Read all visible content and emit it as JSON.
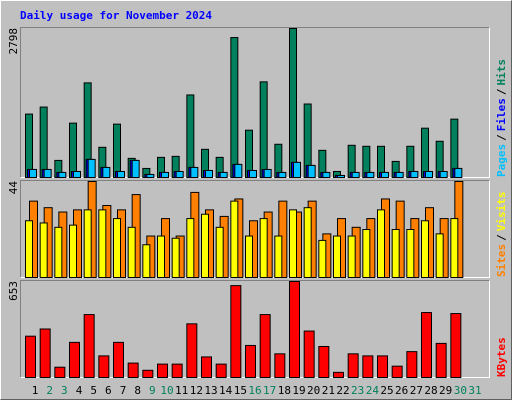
{
  "chart_data": [
    {
      "type": "bar",
      "title": "Daily usage for November 2024",
      "ylim": [
        0,
        2798
      ],
      "yticks": [
        2798
      ],
      "legend_separator": "/",
      "series": [
        {
          "name": "Hits",
          "color": "#00805c",
          "values": [
            1191,
            1323,
            321,
            1021,
            1777,
            567,
            1002,
            359,
            170,
            378,
            397,
            1550,
            529,
            378,
            2628,
            888,
            1796,
            624,
            2798,
            1380,
            510,
            113,
            605,
            586,
            586,
            302,
            586,
            926,
            680,
            1096,
            null
          ]
        },
        {
          "name": "Files",
          "color": "#0000ff",
          "values": [
            151,
            151,
            95,
            113,
            340,
            189,
            113,
            321,
            57,
            95,
            113,
            189,
            132,
            95,
            246,
            132,
            151,
            95,
            284,
            227,
            95,
            38,
            95,
            95,
            95,
            95,
            113,
            113,
            113,
            170,
            null
          ]
        },
        {
          "name": "Pages",
          "color": "#00c0ff",
          "values": [
            151,
            151,
            95,
            113,
            340,
            189,
            113,
            321,
            57,
            95,
            113,
            189,
            132,
            95,
            246,
            132,
            151,
            95,
            284,
            227,
            95,
            38,
            95,
            95,
            95,
            95,
            113,
            113,
            113,
            170,
            null
          ]
        }
      ]
    },
    {
      "type": "bar",
      "ylim": [
        0,
        44
      ],
      "yticks": [
        44
      ],
      "legend_separator": "/",
      "series": [
        {
          "name": "Visits",
          "color": "#ffff00",
          "values": [
            26,
            25,
            23,
            24,
            31,
            31,
            27,
            23,
            15,
            19,
            18,
            27,
            29,
            23,
            35,
            19,
            27,
            19,
            31,
            32,
            17,
            19,
            19,
            22,
            31,
            22,
            22,
            26,
            20,
            27,
            null
          ]
        },
        {
          "name": "Sites",
          "color": "#ff8000",
          "values": [
            35,
            32,
            30,
            31,
            44,
            33,
            31,
            38,
            19,
            27,
            19,
            39,
            31,
            28,
            36,
            26,
            30,
            35,
            30,
            35,
            20,
            27,
            23,
            27,
            36,
            35,
            27,
            32,
            27,
            44,
            null
          ]
        }
      ]
    },
    {
      "type": "bar",
      "ylim": [
        0,
        653
      ],
      "yticks": [
        653
      ],
      "categories": [
        "1",
        "2",
        "3",
        "4",
        "5",
        "6",
        "7",
        "8",
        "9",
        "10",
        "11",
        "12",
        "13",
        "14",
        "15",
        "16",
        "17",
        "18",
        "19",
        "20",
        "21",
        "22",
        "23",
        "24",
        "25",
        "26",
        "27",
        "28",
        "29",
        "30",
        "31"
      ],
      "category_colors": [
        "#000000",
        "#00805c",
        "#00805c",
        "#000000",
        "#000000",
        "#000000",
        "#000000",
        "#000000",
        "#00805c",
        "#00805c",
        "#000000",
        "#000000",
        "#000000",
        "#000000",
        "#000000",
        "#00805c",
        "#00805c",
        "#000000",
        "#000000",
        "#000000",
        "#000000",
        "#000000",
        "#00805c",
        "#00805c",
        "#000000",
        "#000000",
        "#000000",
        "#000000",
        "#000000",
        "#00805c",
        "#00805c"
      ],
      "series": [
        {
          "name": "KBytes",
          "color": "#ff0000",
          "values": [
            281,
            330,
            70,
            239,
            428,
            147,
            239,
            98,
            49,
            91,
            91,
            365,
            140,
            91,
            625,
            218,
            428,
            161,
            653,
            316,
            211,
            35,
            161,
            147,
            147,
            77,
            176,
            442,
            232,
            435,
            null
          ]
        }
      ]
    }
  ]
}
